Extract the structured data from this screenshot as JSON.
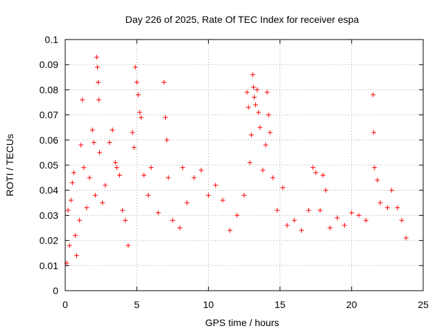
{
  "chart_data": {
    "type": "scatter",
    "title": "Day 226 of 2025, Rate Of TEC Index for receiver espa",
    "xlabel": "GPS time / hours",
    "ylabel": "ROTI / TECUs",
    "xlim": [
      0,
      25
    ],
    "ylim": [
      0,
      0.1
    ],
    "x_ticks": [
      0,
      5,
      10,
      15,
      20,
      25
    ],
    "x_tick_labels": [
      "0",
      "5",
      "10",
      "15",
      "20",
      "25"
    ],
    "y_ticks": [
      0,
      0.01,
      0.02,
      0.03,
      0.04,
      0.05,
      0.06,
      0.07,
      0.08,
      0.09,
      0.1
    ],
    "y_tick_labels": [
      "0",
      "0.01",
      "0.02",
      "0.03",
      "0.04",
      "0.05",
      "0.06",
      "0.07",
      "0.08",
      "0.09",
      "0.1"
    ],
    "grid": true,
    "marker": "+",
    "color": "#ff0000",
    "series": [
      {
        "points": [
          [
            0.1,
            0.011
          ],
          [
            0.2,
            0.032
          ],
          [
            0.3,
            0.018
          ],
          [
            0.4,
            0.036
          ],
          [
            0.5,
            0.043
          ],
          [
            0.6,
            0.047
          ],
          [
            0.7,
            0.022
          ],
          [
            0.8,
            0.014
          ],
          [
            1.0,
            0.028
          ],
          [
            1.1,
            0.058
          ],
          [
            1.2,
            0.076
          ],
          [
            1.3,
            0.049
          ],
          [
            1.5,
            0.033
          ],
          [
            1.7,
            0.045
          ],
          [
            1.9,
            0.064
          ],
          [
            2.0,
            0.059
          ],
          [
            2.1,
            0.038
          ],
          [
            2.2,
            0.093
          ],
          [
            2.25,
            0.089
          ],
          [
            2.3,
            0.083
          ],
          [
            2.35,
            0.076
          ],
          [
            2.4,
            0.055
          ],
          [
            2.6,
            0.035
          ],
          [
            2.8,
            0.042
          ],
          [
            3.1,
            0.059
          ],
          [
            3.3,
            0.064
          ],
          [
            3.5,
            0.051
          ],
          [
            3.6,
            0.049
          ],
          [
            3.8,
            0.046
          ],
          [
            4.0,
            0.032
          ],
          [
            4.2,
            0.028
          ],
          [
            4.4,
            0.018
          ],
          [
            4.7,
            0.063
          ],
          [
            4.8,
            0.057
          ],
          [
            4.9,
            0.089
          ],
          [
            5.0,
            0.083
          ],
          [
            5.1,
            0.078
          ],
          [
            5.2,
            0.071
          ],
          [
            5.3,
            0.069
          ],
          [
            5.5,
            0.046
          ],
          [
            5.8,
            0.038
          ],
          [
            6.0,
            0.049
          ],
          [
            6.5,
            0.031
          ],
          [
            6.9,
            0.083
          ],
          [
            7.0,
            0.069
          ],
          [
            7.1,
            0.06
          ],
          [
            7.2,
            0.045
          ],
          [
            7.5,
            0.028
          ],
          [
            8.0,
            0.025
          ],
          [
            8.2,
            0.049
          ],
          [
            8.5,
            0.035
          ],
          [
            9.0,
            0.045
          ],
          [
            9.5,
            0.048
          ],
          [
            10.0,
            0.038
          ],
          [
            10.5,
            0.042
          ],
          [
            11.0,
            0.036
          ],
          [
            11.5,
            0.024
          ],
          [
            12.0,
            0.03
          ],
          [
            12.5,
            0.038
          ],
          [
            12.7,
            0.079
          ],
          [
            12.8,
            0.073
          ],
          [
            12.9,
            0.051
          ],
          [
            13.0,
            0.062
          ],
          [
            13.1,
            0.086
          ],
          [
            13.15,
            0.081
          ],
          [
            13.2,
            0.077
          ],
          [
            13.3,
            0.074
          ],
          [
            13.4,
            0.08
          ],
          [
            13.5,
            0.071
          ],
          [
            13.6,
            0.065
          ],
          [
            13.8,
            0.048
          ],
          [
            14.0,
            0.058
          ],
          [
            14.1,
            0.079
          ],
          [
            14.2,
            0.07
          ],
          [
            14.3,
            0.063
          ],
          [
            14.5,
            0.045
          ],
          [
            14.8,
            0.032
          ],
          [
            15.2,
            0.041
          ],
          [
            15.5,
            0.026
          ],
          [
            16.0,
            0.028
          ],
          [
            16.5,
            0.024
          ],
          [
            17.0,
            0.032
          ],
          [
            17.3,
            0.049
          ],
          [
            17.5,
            0.047
          ],
          [
            17.8,
            0.032
          ],
          [
            18.0,
            0.046
          ],
          [
            18.2,
            0.04
          ],
          [
            18.5,
            0.025
          ],
          [
            19.0,
            0.029
          ],
          [
            19.5,
            0.026
          ],
          [
            20.0,
            0.031
          ],
          [
            20.5,
            0.03
          ],
          [
            21.0,
            0.028
          ],
          [
            21.5,
            0.078
          ],
          [
            21.55,
            0.063
          ],
          [
            21.6,
            0.049
          ],
          [
            21.8,
            0.044
          ],
          [
            22.0,
            0.035
          ],
          [
            22.5,
            0.033
          ],
          [
            22.8,
            0.04
          ],
          [
            23.2,
            0.033
          ],
          [
            23.5,
            0.028
          ],
          [
            23.8,
            0.021
          ]
        ]
      }
    ]
  }
}
